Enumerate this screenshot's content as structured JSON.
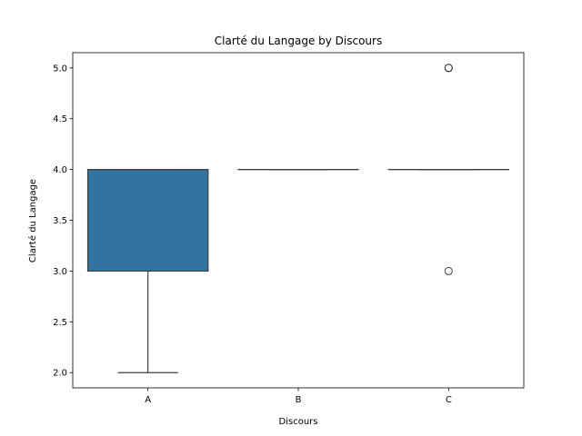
{
  "chart_data": {
    "type": "box",
    "title": "Clarté du Langage by Discours",
    "xlabel": "Discours",
    "ylabel": "Clarté du Langage",
    "categories": [
      "A",
      "B",
      "C"
    ],
    "ylim": [
      1.85,
      5.15
    ],
    "yticks": [
      "2.0",
      "2.5",
      "3.0",
      "3.5",
      "4.0",
      "4.5",
      "5.0"
    ],
    "box_color": "#3274a1",
    "boxes": [
      {
        "category": "A",
        "whislo": 2.0,
        "q1": 3.0,
        "median": 4.0,
        "q3": 4.0,
        "whishi": 4.0,
        "fliers": []
      },
      {
        "category": "B",
        "whislo": 4.0,
        "q1": 4.0,
        "median": 4.0,
        "q3": 4.0,
        "whishi": 4.0,
        "fliers": []
      },
      {
        "category": "C",
        "whislo": 4.0,
        "q1": 4.0,
        "median": 4.0,
        "q3": 4.0,
        "whishi": 4.0,
        "fliers": [
          3.0,
          5.0,
          5.0,
          5.0
        ]
      }
    ],
    "grid": false,
    "legend": "none"
  }
}
